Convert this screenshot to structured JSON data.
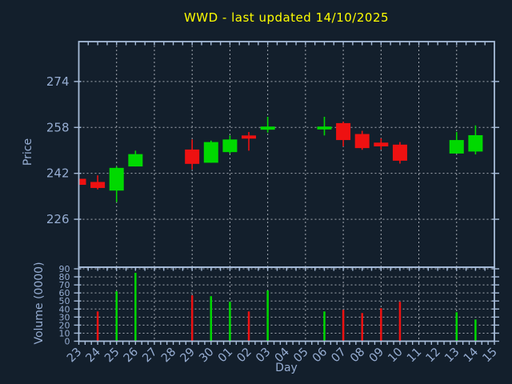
{
  "window": {
    "title": "WWD - last updated 14/10/2025"
  },
  "colors": {
    "background": "#131f2c",
    "frame": "#a7bcd9",
    "grid": "#c6cad2",
    "tick_label": "#96add2",
    "title": "#ffff00",
    "bullish_green": "#00d900",
    "bearish_red": "#ee1111"
  },
  "chart_data": {
    "type": "candlestick",
    "title": "WWD - last updated 14/10/2025",
    "subtitle": "",
    "xlabel": "Day",
    "legend": "none",
    "grid": {
      "style": "dashed",
      "vertical_gridline_every_days": 2,
      "horizontal_price_gridlines": [
        226,
        242,
        258,
        274
      ],
      "horizontal_volume_gridlines": [
        10,
        20,
        30,
        40,
        50,
        60,
        70,
        80,
        90
      ]
    },
    "price_axis": {
      "label": "Price",
      "ticks": [
        226,
        242,
        258,
        274
      ],
      "ylim": [
        209.3,
        287.9
      ]
    },
    "volume_axis": {
      "label": "Volume (0000)",
      "ticks": [
        0,
        10,
        20,
        30,
        40,
        50,
        60,
        70,
        80,
        90
      ],
      "ylim": [
        0,
        92
      ]
    },
    "x_tick_labels": [
      "23",
      "24",
      "25",
      "26",
      "27",
      "28",
      "29",
      "30",
      "01",
      "02",
      "03",
      "04",
      "05",
      "06",
      "07",
      "08",
      "09",
      "10",
      "11",
      "12",
      "13",
      "14",
      "15"
    ],
    "x_tick_rotation_deg": 45,
    "series": [
      {
        "day": "23",
        "x_index": 0,
        "open": 240.1,
        "high": 240.1,
        "low": 238.0,
        "close": 238.0,
        "volume": null,
        "direction": "down"
      },
      {
        "day": "24",
        "x_index": 1,
        "open": 239.0,
        "high": 241.3,
        "low": 236.4,
        "close": 236.9,
        "volume": 37,
        "direction": "down"
      },
      {
        "day": "25",
        "x_index": 2,
        "open": 236.0,
        "high": 244.4,
        "low": 232.0,
        "close": 243.9,
        "volume": 62,
        "direction": "up"
      },
      {
        "day": "26",
        "x_index": 3,
        "open": 244.4,
        "high": 249.9,
        "low": 244.4,
        "close": 248.7,
        "volume": 85,
        "direction": "up"
      },
      {
        "day": "29",
        "x_index": 6,
        "open": 250.3,
        "high": 253.8,
        "low": 243.4,
        "close": 245.3,
        "volume": 57,
        "direction": "down"
      },
      {
        "day": "30",
        "x_index": 7,
        "open": 245.7,
        "high": 253.4,
        "low": 245.7,
        "close": 252.9,
        "volume": 56,
        "direction": "up"
      },
      {
        "day": "01",
        "x_index": 8,
        "open": 249.4,
        "high": 255.2,
        "low": 248.9,
        "close": 253.8,
        "volume": 49,
        "direction": "up"
      },
      {
        "day": "02",
        "x_index": 9,
        "open": 255.2,
        "high": 256.4,
        "low": 249.9,
        "close": 254.1,
        "volume": 37,
        "direction": "down"
      },
      {
        "day": "03",
        "x_index": 10,
        "open": 257.2,
        "high": 261.7,
        "low": 256.2,
        "close": 258.3,
        "volume": 63,
        "direction": "up"
      },
      {
        "day": "06",
        "x_index": 13,
        "open": 257.3,
        "high": 261.7,
        "low": 255.2,
        "close": 258.3,
        "volume": 37,
        "direction": "up"
      },
      {
        "day": "07",
        "x_index": 14,
        "open": 259.5,
        "high": 260.0,
        "low": 251.4,
        "close": 253.6,
        "volume": 39,
        "direction": "down"
      },
      {
        "day": "08",
        "x_index": 15,
        "open": 255.7,
        "high": 256.8,
        "low": 250.2,
        "close": 250.8,
        "volume": 35,
        "direction": "down"
      },
      {
        "day": "09",
        "x_index": 16,
        "open": 252.7,
        "high": 254.2,
        "low": 250.3,
        "close": 251.4,
        "volume": 41,
        "direction": "down"
      },
      {
        "day": "10",
        "x_index": 17,
        "open": 252.0,
        "high": 252.9,
        "low": 245.4,
        "close": 246.4,
        "volume": 49,
        "direction": "down"
      },
      {
        "day": "13",
        "x_index": 20,
        "open": 248.9,
        "high": 256.4,
        "low": 248.9,
        "close": 253.6,
        "volume": 36,
        "direction": "up"
      },
      {
        "day": "14",
        "x_index": 21,
        "open": 249.6,
        "high": 258.7,
        "low": 248.6,
        "close": 255.3,
        "volume": 27,
        "direction": "up"
      }
    ]
  }
}
